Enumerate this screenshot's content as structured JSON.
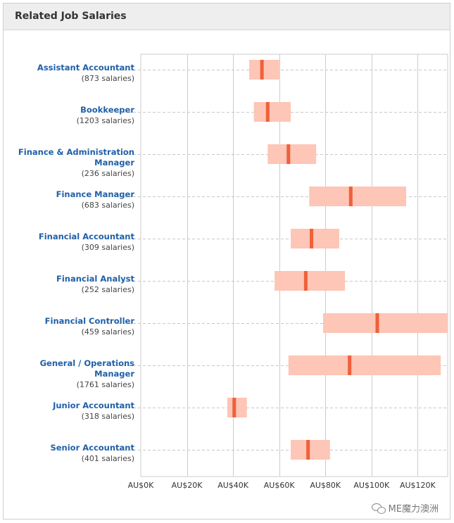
{
  "header": {
    "title": "Related Job Salaries"
  },
  "watermark": {
    "text": "ME魔力澳洲",
    "icon": "wechat-icon"
  },
  "colors": {
    "range": "#fdc6b6",
    "median": "#f0603a",
    "link": "#2060a8",
    "grid": "#cccccc",
    "dash": "#c8c8c8"
  },
  "chart_data": {
    "type": "range-bar",
    "title": "Related Job Salaries",
    "xlabel": "",
    "ylabel": "",
    "xlim": [
      0,
      133000
    ],
    "ticks": [
      0,
      20000,
      40000,
      60000,
      80000,
      100000,
      120000
    ],
    "tick_labels": [
      "AU$0K",
      "AU$20K",
      "AU$40K",
      "AU$60K",
      "AU$80K",
      "AU$100K",
      "AU$120K"
    ],
    "grid": true,
    "jobs": [
      {
        "title_lines": [
          "Assistant Accountant"
        ],
        "count": "(873 salaries)",
        "low": 47000,
        "median": 52500,
        "high": 60000
      },
      {
        "title_lines": [
          "Bookkeeper"
        ],
        "count": "(1203 salaries)",
        "low": 49000,
        "median": 55000,
        "high": 65000
      },
      {
        "title_lines": [
          "Finance & Administration",
          "Manager"
        ],
        "count": "(236 salaries)",
        "low": 55000,
        "median": 64000,
        "high": 76000
      },
      {
        "title_lines": [
          "Finance Manager"
        ],
        "count": "(683 salaries)",
        "low": 73000,
        "median": 91000,
        "high": 115000
      },
      {
        "title_lines": [
          "Financial Accountant"
        ],
        "count": "(309 salaries)",
        "low": 65000,
        "median": 74000,
        "high": 86000
      },
      {
        "title_lines": [
          "Financial Analyst"
        ],
        "count": "(252 salaries)",
        "low": 58000,
        "median": 71500,
        "high": 88500
      },
      {
        "title_lines": [
          "Financial Controller"
        ],
        "count": "(459 salaries)",
        "low": 79000,
        "median": 102500,
        "high": 133000
      },
      {
        "title_lines": [
          "General / Operations",
          "Manager"
        ],
        "count": "(1761 salaries)",
        "low": 64000,
        "median": 90500,
        "high": 130000
      },
      {
        "title_lines": [
          "Junior Accountant"
        ],
        "count": "(318 salaries)",
        "low": 37500,
        "median": 40500,
        "high": 46000
      },
      {
        "title_lines": [
          "Senior Accountant"
        ],
        "count": "(401 salaries)",
        "low": 65000,
        "median": 72500,
        "high": 82000
      }
    ]
  }
}
